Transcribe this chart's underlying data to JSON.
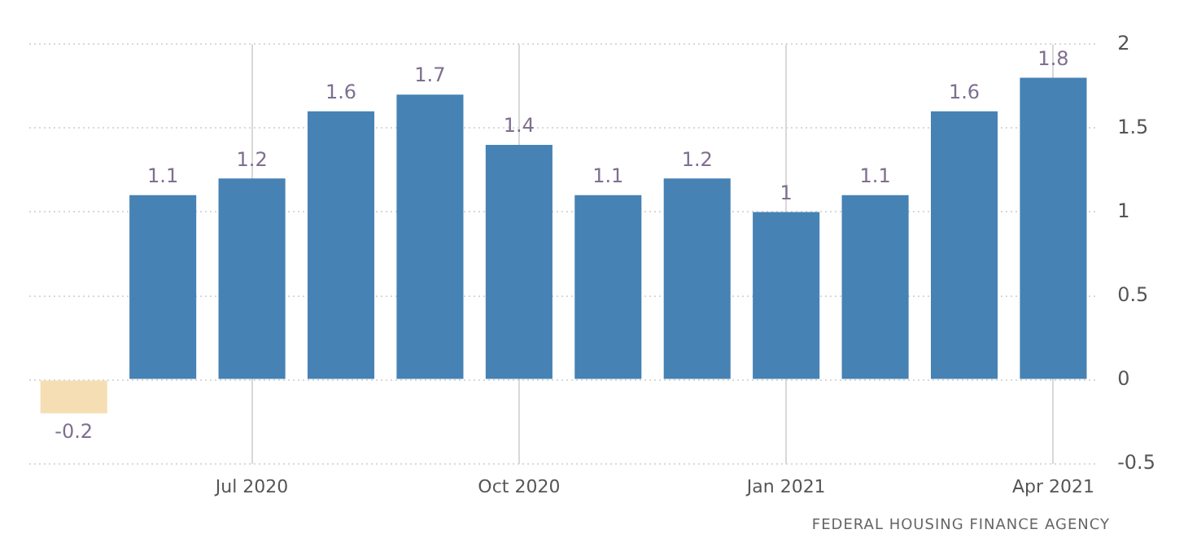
{
  "chart_data": {
    "type": "bar",
    "categories": [
      null,
      null,
      "Jul 2020",
      null,
      null,
      "Oct 2020",
      null,
      null,
      "Jan 2021",
      null,
      null,
      "Apr 2021"
    ],
    "values": [
      -0.2,
      1.1,
      1.2,
      1.6,
      1.7,
      1.4,
      1.1,
      1.2,
      1,
      1.1,
      1.6,
      1.8
    ],
    "colors": [
      "#f5deb3",
      "#4682b4",
      "#4682b4",
      "#4682b4",
      "#4682b4",
      "#4682b4",
      "#4682b4",
      "#4682b4",
      "#4682b4",
      "#4682b4",
      "#4682b4",
      "#4682b4"
    ],
    "ylim": [
      -0.5,
      2
    ],
    "yticks": [
      -0.5,
      0,
      0.5,
      1,
      1.5,
      2
    ],
    "grid": true,
    "data_labels": true,
    "annotations": [
      "FEDERAL HOUSING FINANCE AGENCY"
    ]
  }
}
